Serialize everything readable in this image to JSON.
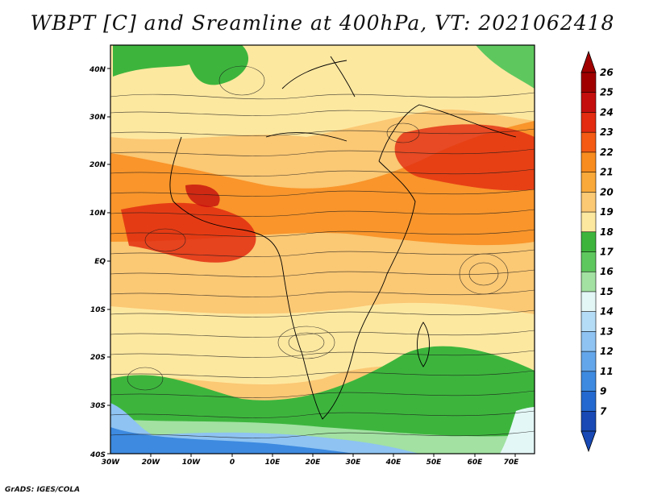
{
  "title": "WBPT [C] and Sreamline at 400hPa, VT: 2021062418",
  "footer": "GrADS: IGES/COLA",
  "map": {
    "lat_labels": [
      "40N",
      "30N",
      "20N",
      "10N",
      "EQ",
      "10S",
      "20S",
      "30S",
      "40S"
    ],
    "lon_labels": [
      "30W",
      "20W",
      "10W",
      "0",
      "10E",
      "20E",
      "30E",
      "40E",
      "50E",
      "60E",
      "70E"
    ]
  },
  "colorbar": {
    "labels": [
      "26",
      "25",
      "24",
      "23",
      "22",
      "21",
      "20",
      "19",
      "18",
      "17",
      "16",
      "15",
      "14",
      "13",
      "12",
      "11",
      "9",
      "7"
    ],
    "colors": [
      "#a00000",
      "#c40e0e",
      "#e22b10",
      "#f45a14",
      "#f88c1e",
      "#f9a93a",
      "#fbc874",
      "#fde8a0",
      "#3db53d",
      "#5ec85e",
      "#a2e1a2",
      "#e4f7f7",
      "#b5dcf7",
      "#8ec3f2",
      "#64a6ea",
      "#3d8ae0",
      "#2469cf",
      "#1849b4"
    ],
    "top_color": "#a00000",
    "bottom_color": "#1849b4"
  }
}
